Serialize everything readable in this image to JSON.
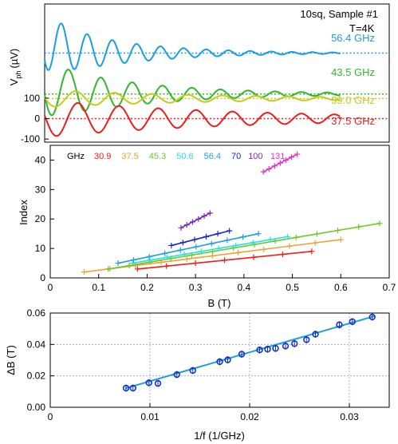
{
  "chart_data": [
    {
      "type": "line",
      "panel": "top",
      "ylabel_main": "V",
      "ylabel_sub": "ph",
      "ylabel_unit": "(µV)",
      "annotations": [
        "10sq, Sample #1",
        "T=4K"
      ],
      "yticks": [
        {
          "label": "100",
          "value": 100
        },
        {
          "label": "0",
          "value": 0
        },
        {
          "label": "-100",
          "value": -100
        }
      ],
      "ylim": [
        -115,
        560
      ],
      "series": [
        {
          "name": "56.4 GHz",
          "color": "#1b9ee6",
          "offset": 320,
          "amp": 160,
          "period": 0.055,
          "decay": 0.16
        },
        {
          "name": "43.5 GHz",
          "color": "#2eb82e",
          "offset": 120,
          "amp": 150,
          "period": 0.07,
          "decay": 0.2
        },
        {
          "name": "39.0 GHz",
          "color": "#c8c81e",
          "offset": 98,
          "amp": 45,
          "period": 0.085,
          "decay": 0.35
        },
        {
          "name": "37.5 GHz",
          "color": "#ee1c1c",
          "offset": 0,
          "amp": 95,
          "period": 0.09,
          "decay": 0.4
        }
      ],
      "xlim": [
        0,
        0.7
      ]
    },
    {
      "type": "scatter",
      "panel": "middle",
      "xlabel": "B (T)",
      "ylabel": "Index",
      "xlim": [
        0,
        0.7
      ],
      "ylim": [
        0,
        45
      ],
      "xticks": [
        0,
        0.1,
        0.2,
        0.3,
        0.4,
        0.5,
        0.6,
        0.7
      ],
      "yticks": [
        0,
        10,
        20,
        30,
        40
      ],
      "legend_title": "GHz",
      "series": [
        {
          "name": "30.9",
          "color": "#ee1c1c",
          "x0": 0.18,
          "x1": 0.54,
          "y0": 3,
          "y1": 9,
          "n": 7
        },
        {
          "name": "37.5",
          "color": "#f0a030",
          "x0": 0.07,
          "x1": 0.6,
          "y0": 2,
          "y1": 13,
          "n": 11
        },
        {
          "name": "45.3",
          "color": "#6ac926",
          "x0": 0.12,
          "x1": 0.68,
          "y0": 3,
          "y1": 18.5,
          "n": 14
        },
        {
          "name": "50.6",
          "color": "#20e0e8",
          "x0": 0.17,
          "x1": 0.49,
          "y0": 5,
          "y1": 14,
          "n": 10
        },
        {
          "name": "56.4",
          "color": "#1b9ee6",
          "x0": 0.14,
          "x1": 0.43,
          "y0": 5,
          "y1": 15,
          "n": 10
        },
        {
          "name": "70",
          "color": "#1828cc",
          "x0": 0.25,
          "x1": 0.37,
          "y0": 11,
          "y1": 16,
          "n": 6
        },
        {
          "name": "100",
          "color": "#7e2bc0",
          "x0": 0.27,
          "x1": 0.33,
          "y0": 17,
          "y1": 22,
          "n": 6
        },
        {
          "name": "131",
          "color": "#ee2ccc",
          "x0": 0.44,
          "x1": 0.51,
          "y0": 36,
          "y1": 42,
          "n": 7
        }
      ]
    },
    {
      "type": "scatter",
      "panel": "bottom",
      "xlabel": "1/f (1/GHz)",
      "ylabel": "ΔB (T)",
      "xlim": [
        0,
        0.034
      ],
      "ylim": [
        0,
        0.06
      ],
      "xticks": [
        0,
        0.01,
        0.02,
        0.03
      ],
      "yticks": [
        0.0,
        0.02,
        0.04,
        0.06
      ],
      "grid": true,
      "color": "#1533cc",
      "fit_color": "#1aa0e0",
      "points": [
        {
          "x": 0.0076,
          "y": 0.0122
        },
        {
          "x": 0.0083,
          "y": 0.0122
        },
        {
          "x": 0.0099,
          "y": 0.0156
        },
        {
          "x": 0.0108,
          "y": 0.0152
        },
        {
          "x": 0.0127,
          "y": 0.0208
        },
        {
          "x": 0.0143,
          "y": 0.0234
        },
        {
          "x": 0.017,
          "y": 0.029
        },
        {
          "x": 0.0178,
          "y": 0.0302
        },
        {
          "x": 0.0192,
          "y": 0.0338
        },
        {
          "x": 0.021,
          "y": 0.0365
        },
        {
          "x": 0.0218,
          "y": 0.037
        },
        {
          "x": 0.0226,
          "y": 0.0375
        },
        {
          "x": 0.0236,
          "y": 0.039
        },
        {
          "x": 0.0245,
          "y": 0.0405
        },
        {
          "x": 0.0257,
          "y": 0.043
        },
        {
          "x": 0.0266,
          "y": 0.0465
        },
        {
          "x": 0.029,
          "y": 0.0525
        },
        {
          "x": 0.0303,
          "y": 0.0545
        },
        {
          "x": 0.0323,
          "y": 0.0575
        }
      ],
      "fit": {
        "x0": 0.0075,
        "y0": 0.012,
        "x1": 0.0325,
        "y1": 0.058
      }
    }
  ]
}
